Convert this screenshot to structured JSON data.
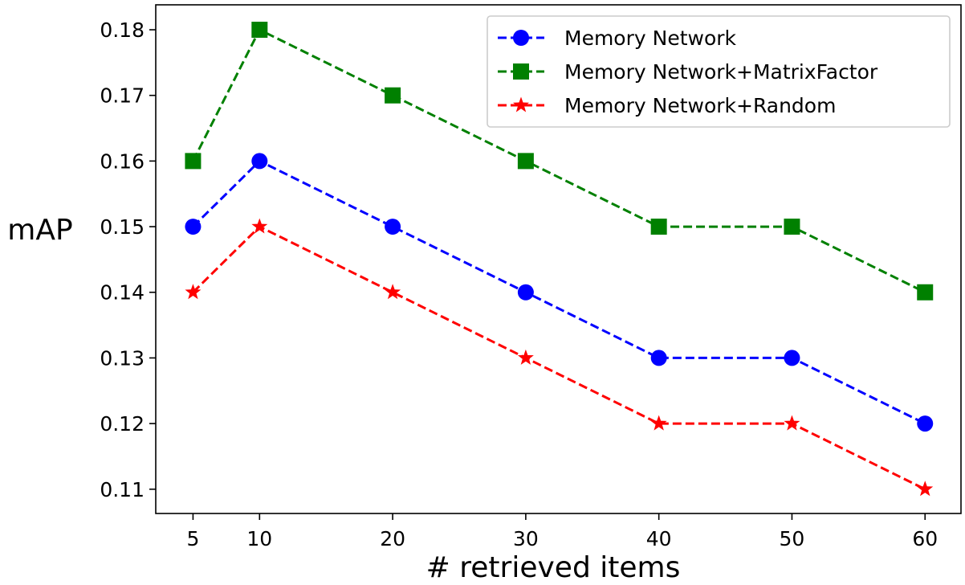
{
  "chart_data": {
    "type": "line",
    "xlabel": "# retrieved items",
    "ylabel": "mAP",
    "x": [
      5,
      10,
      20,
      30,
      40,
      50,
      60
    ],
    "xticks": [
      "5",
      "10",
      "20",
      "30",
      "40",
      "50",
      "60"
    ],
    "yticks": [
      "0.11",
      "0.12",
      "0.13",
      "0.14",
      "0.15",
      "0.16",
      "0.17",
      "0.18"
    ],
    "xlim": [
      2.2,
      62.7
    ],
    "ylim": [
      0.1063,
      0.1838
    ],
    "grid": false,
    "legend_position": "top-right",
    "series": [
      {
        "name": "Memory Network",
        "values": [
          0.15,
          0.16,
          0.15,
          0.14,
          0.13,
          0.13,
          0.12
        ],
        "color": "#0000ff",
        "marker": "circle",
        "linestyle": "dashed"
      },
      {
        "name": "Memory Network+MatrixFactor",
        "values": [
          0.16,
          0.18,
          0.17,
          0.16,
          0.15,
          0.15,
          0.14
        ],
        "color": "#008000",
        "marker": "square",
        "linestyle": "dashed"
      },
      {
        "name": "Memory Network+Random",
        "values": [
          0.14,
          0.15,
          0.14,
          0.13,
          0.12,
          0.12,
          0.11
        ],
        "color": "#ff0000",
        "marker": "star",
        "linestyle": "dashed"
      }
    ]
  }
}
